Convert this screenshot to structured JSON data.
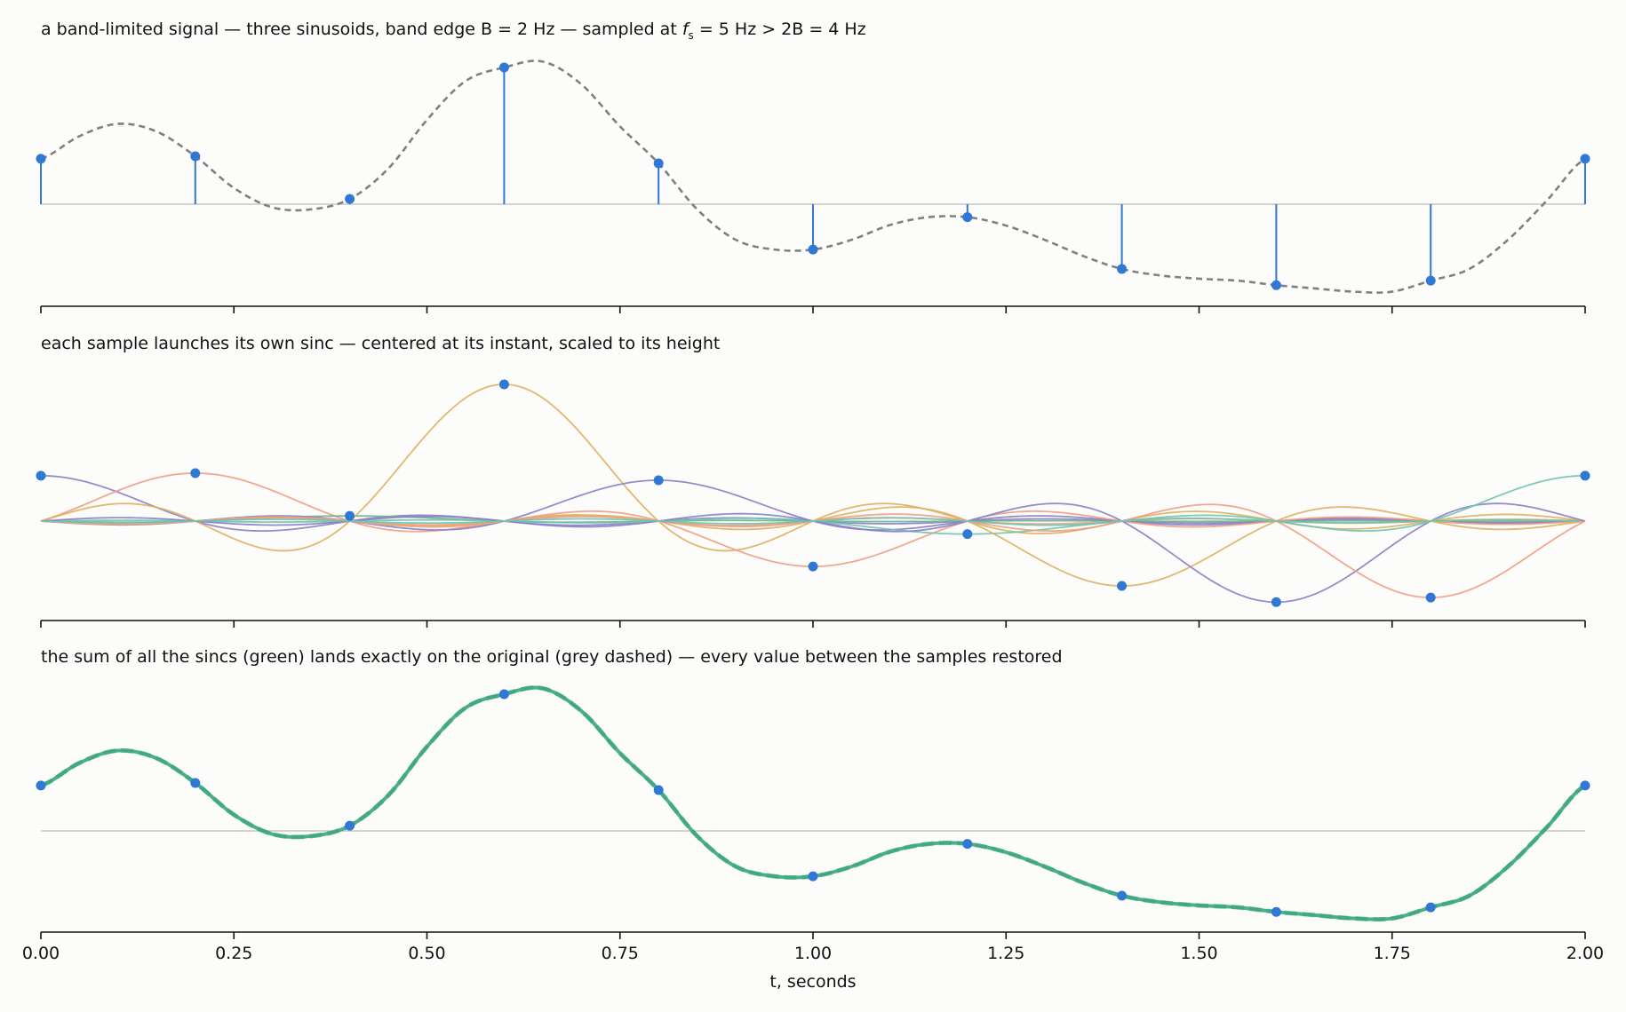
{
  "chart_data": [
    {
      "type": "line",
      "title_parts": {
        "prefix": "a band-limited signal — three sinusoids, band edge B = 2 Hz — sampled at ",
        "var": "f",
        "sub": "s",
        "suffix": " = 5 Hz > 2B = 4 Hz"
      },
      "xlim": [
        0,
        2
      ],
      "ylim": [
        -1.55,
        2.2
      ],
      "signal": {
        "x": [
          0.0,
          0.05,
          0.1,
          0.15,
          0.2,
          0.25,
          0.3,
          0.35,
          0.4,
          0.45,
          0.5,
          0.55,
          0.6,
          0.65,
          0.7,
          0.75,
          0.8,
          0.85,
          0.9,
          0.95,
          1.0,
          1.05,
          1.1,
          1.15,
          1.2,
          1.25,
          1.3,
          1.35,
          1.4,
          1.45,
          1.5,
          1.55,
          1.6,
          1.65,
          1.7,
          1.75,
          1.8,
          1.85,
          1.9,
          1.95,
          2.0
        ],
        "y": [
          0.7,
          1.05,
          1.24,
          1.12,
          0.74,
          0.25,
          -0.05,
          -0.08,
          0.08,
          0.55,
          1.3,
          1.9,
          2.11,
          2.2,
          1.85,
          1.2,
          0.63,
          -0.08,
          -0.55,
          -0.7,
          -0.7,
          -0.55,
          -0.32,
          -0.2,
          -0.2,
          -0.33,
          -0.55,
          -0.8,
          -1.0,
          -1.1,
          -1.15,
          -1.18,
          -1.25,
          -1.3,
          -1.35,
          -1.35,
          -1.18,
          -1.0,
          -0.55,
          0.05,
          0.7
        ]
      },
      "stems": {
        "x": [
          0.0,
          0.2,
          0.4,
          0.6,
          0.8,
          1.0,
          1.2,
          1.4,
          1.6,
          1.8,
          2.0
        ],
        "y": [
          0.7,
          0.74,
          0.08,
          2.11,
          0.63,
          -0.7,
          -0.2,
          -1.0,
          -1.25,
          -1.18,
          0.7
        ]
      },
      "grid": false
    },
    {
      "type": "line",
      "title": "each sample launches its own sinc — centered at its instant, scaled to its height",
      "xlim": [
        0,
        2
      ],
      "ylim": [
        -1.55,
        2.2
      ],
      "fs": 5,
      "samples": {
        "x": [
          0.0,
          0.2,
          0.4,
          0.6,
          0.8,
          1.0,
          1.2,
          1.4,
          1.6,
          1.8,
          2.0
        ],
        "y": [
          0.7,
          0.74,
          0.08,
          2.11,
          0.63,
          -0.7,
          -0.2,
          -1.0,
          -1.25,
          -1.18,
          0.7
        ]
      },
      "sinc_colors": [
        "#8a7fc7",
        "#ee9e84",
        "#6fb08a",
        "#dfb060",
        "#8a7fc7",
        "#ee9e84",
        "#6fc4b0",
        "#dfb060",
        "#8a7fc7",
        "#ee9e84",
        "#6fc4b0"
      ],
      "grid": false
    },
    {
      "type": "line",
      "title": "the sum of all the sincs (green) lands exactly on the original (grey dashed) — every value between the samples restored",
      "xlim": [
        0,
        2
      ],
      "ylim": [
        -1.55,
        2.2
      ],
      "xticks": [
        "0.00",
        "0.25",
        "0.50",
        "0.75",
        "1.00",
        "1.25",
        "1.50",
        "1.75",
        "2.00"
      ],
      "xlabel": "t, seconds",
      "series": [
        {
          "role": "reconstruction",
          "color": "#3aa57f"
        },
        {
          "role": "original",
          "color": "#7a7a7a"
        }
      ],
      "grid": false
    }
  ],
  "colors": {
    "sample": "#2f78d4",
    "original": "#808080",
    "sum": "#3aa57f",
    "axis": "#111111",
    "zero": "#bbbbbb"
  }
}
